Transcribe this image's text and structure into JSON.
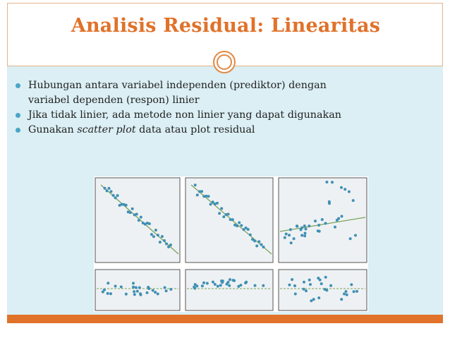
{
  "slide": {
    "title": "Analisis Residual: Linearitas",
    "bullets": [
      {
        "line1": "Hubungan antara variabel independen (prediktor) dengan",
        "line2": "variabel dependen (respon) linier"
      },
      {
        "text": "Jika tidak linier, ada metode non linier yang dapat digunakan"
      },
      {
        "prefix": "Gunakan ",
        "italic": "scatter plot",
        "suffix": " data atau plot residual"
      }
    ]
  },
  "colors": {
    "accent": "#e0722a",
    "content_bg": "#dbeff4",
    "bullet": "#4aa6c6",
    "point": "#3f8fb5",
    "fit_line": "#7aa35a",
    "zero_line": "#7aa35a"
  },
  "figure_panels": [
    {
      "name": "scatter-linear-neg-1",
      "kind": "scatter"
    },
    {
      "name": "scatter-linear-neg-2",
      "kind": "scatter"
    },
    {
      "name": "scatter-nonlinear",
      "kind": "scatter"
    },
    {
      "name": "residual-1",
      "kind": "residual"
    },
    {
      "name": "residual-2",
      "kind": "residual"
    },
    {
      "name": "residual-3",
      "kind": "residual"
    }
  ]
}
